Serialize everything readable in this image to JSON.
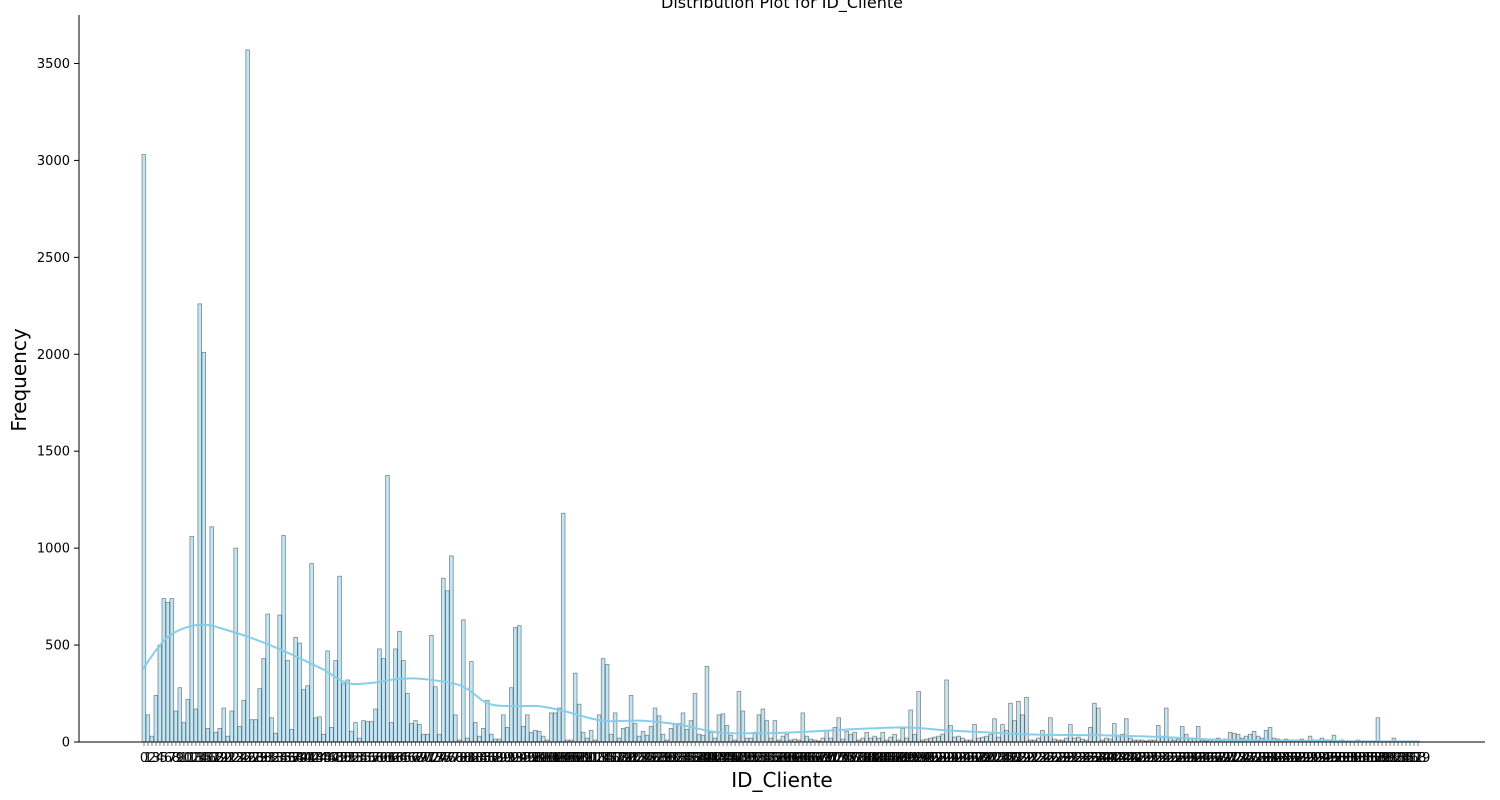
{
  "chart_data": {
    "type": "bar",
    "title": "Distribution Plot for ID_Cliente",
    "xlabel": "ID_Cliente",
    "ylabel": "Frequency",
    "ylim": [
      0,
      3750
    ],
    "yticks": [
      0,
      500,
      1000,
      1500,
      2000,
      2500,
      3000,
      3500
    ],
    "grid": false,
    "colors": {
      "bar": "#87CEEB",
      "kde": "#87CEEB",
      "edge": "#2f2f2f"
    },
    "n_bins": 320,
    "kde": {
      "x_fraction": [
        0.0,
        0.02,
        0.045,
        0.07,
        0.1,
        0.14,
        0.16,
        0.18,
        0.2,
        0.22,
        0.25,
        0.27,
        0.29,
        0.31,
        0.33,
        0.36,
        0.39,
        0.42,
        0.45,
        0.48,
        0.51,
        0.54,
        0.57,
        0.6,
        0.63,
        0.66,
        0.7,
        0.75,
        0.8,
        0.84,
        0.88,
        0.92,
        0.96,
        1.0
      ],
      "values": [
        370,
        540,
        605,
        570,
        500,
        380,
        305,
        305,
        325,
        325,
        290,
        200,
        185,
        185,
        160,
        110,
        110,
        90,
        50,
        45,
        50,
        60,
        70,
        75,
        60,
        50,
        38,
        35,
        25,
        12,
        8,
        5,
        3,
        2
      ]
    },
    "bars": [
      {
        "i": 0,
        "v": 3030
      },
      {
        "i": 1,
        "v": 140
      },
      {
        "i": 2,
        "v": 30
      },
      {
        "i": 3,
        "v": 240
      },
      {
        "i": 4,
        "v": 500
      },
      {
        "i": 5,
        "v": 740
      },
      {
        "i": 6,
        "v": 720
      },
      {
        "i": 7,
        "v": 740
      },
      {
        "i": 8,
        "v": 160
      },
      {
        "i": 9,
        "v": 280
      },
      {
        "i": 10,
        "v": 100
      },
      {
        "i": 11,
        "v": 220
      },
      {
        "i": 12,
        "v": 1060
      },
      {
        "i": 13,
        "v": 170
      },
      {
        "i": 14,
        "v": 2260
      },
      {
        "i": 15,
        "v": 2010
      },
      {
        "i": 16,
        "v": 70
      },
      {
        "i": 17,
        "v": 1110
      },
      {
        "i": 18,
        "v": 50
      },
      {
        "i": 19,
        "v": 70
      },
      {
        "i": 20,
        "v": 175
      },
      {
        "i": 21,
        "v": 30
      },
      {
        "i": 22,
        "v": 160
      },
      {
        "i": 23,
        "v": 1000
      },
      {
        "i": 24,
        "v": 80
      },
      {
        "i": 25,
        "v": 215
      },
      {
        "i": 26,
        "v": 3570
      },
      {
        "i": 27,
        "v": 115
      },
      {
        "i": 28,
        "v": 115
      },
      {
        "i": 29,
        "v": 275
      },
      {
        "i": 30,
        "v": 430
      },
      {
        "i": 31,
        "v": 660
      },
      {
        "i": 32,
        "v": 125
      },
      {
        "i": 33,
        "v": 45
      },
      {
        "i": 34,
        "v": 655
      },
      {
        "i": 35,
        "v": 1065
      },
      {
        "i": 36,
        "v": 420
      },
      {
        "i": 37,
        "v": 65
      },
      {
        "i": 38,
        "v": 540
      },
      {
        "i": 39,
        "v": 510
      },
      {
        "i": 40,
        "v": 270
      },
      {
        "i": 41,
        "v": 290
      },
      {
        "i": 42,
        "v": 920
      },
      {
        "i": 43,
        "v": 125
      },
      {
        "i": 44,
        "v": 130
      },
      {
        "i": 45,
        "v": 40
      },
      {
        "i": 46,
        "v": 470
      },
      {
        "i": 47,
        "v": 75
      },
      {
        "i": 48,
        "v": 420
      },
      {
        "i": 49,
        "v": 855
      },
      {
        "i": 50,
        "v": 300
      },
      {
        "i": 51,
        "v": 320
      },
      {
        "i": 52,
        "v": 55
      },
      {
        "i": 53,
        "v": 100
      },
      {
        "i": 54,
        "v": 20
      },
      {
        "i": 55,
        "v": 110
      },
      {
        "i": 56,
        "v": 105
      },
      {
        "i": 57,
        "v": 105
      },
      {
        "i": 58,
        "v": 170
      },
      {
        "i": 59,
        "v": 480
      },
      {
        "i": 60,
        "v": 430
      },
      {
        "i": 61,
        "v": 1375
      },
      {
        "i": 62,
        "v": 100
      },
      {
        "i": 63,
        "v": 480
      },
      {
        "i": 64,
        "v": 570
      },
      {
        "i": 65,
        "v": 420
      },
      {
        "i": 66,
        "v": 250
      },
      {
        "i": 67,
        "v": 95
      },
      {
        "i": 68,
        "v": 110
      },
      {
        "i": 69,
        "v": 90
      },
      {
        "i": 70,
        "v": 40
      },
      {
        "i": 71,
        "v": 40
      },
      {
        "i": 72,
        "v": 550
      },
      {
        "i": 73,
        "v": 285
      },
      {
        "i": 74,
        "v": 40
      },
      {
        "i": 75,
        "v": 845
      },
      {
        "i": 76,
        "v": 780
      },
      {
        "i": 77,
        "v": 960
      },
      {
        "i": 78,
        "v": 140
      },
      {
        "i": 79,
        "v": 10
      },
      {
        "i": 80,
        "v": 630
      },
      {
        "i": 81,
        "v": 20
      },
      {
        "i": 82,
        "v": 415
      },
      {
        "i": 83,
        "v": 100
      },
      {
        "i": 84,
        "v": 30
      },
      {
        "i": 85,
        "v": 70
      },
      {
        "i": 86,
        "v": 215
      },
      {
        "i": 87,
        "v": 40
      },
      {
        "i": 88,
        "v": 15
      },
      {
        "i": 89,
        "v": 15
      },
      {
        "i": 90,
        "v": 140
      },
      {
        "i": 91,
        "v": 75
      },
      {
        "i": 92,
        "v": 280
      },
      {
        "i": 93,
        "v": 590
      },
      {
        "i": 94,
        "v": 600
      },
      {
        "i": 95,
        "v": 80
      },
      {
        "i": 96,
        "v": 140
      },
      {
        "i": 97,
        "v": 50
      },
      {
        "i": 98,
        "v": 60
      },
      {
        "i": 99,
        "v": 55
      },
      {
        "i": 100,
        "v": 30
      },
      {
        "i": 101,
        "v": 10
      },
      {
        "i": 102,
        "v": 150
      },
      {
        "i": 103,
        "v": 150
      },
      {
        "i": 104,
        "v": 175
      },
      {
        "i": 105,
        "v": 1180
      },
      {
        "i": 106,
        "v": 10
      },
      {
        "i": 107,
        "v": 10
      },
      {
        "i": 108,
        "v": 355
      },
      {
        "i": 109,
        "v": 195
      },
      {
        "i": 110,
        "v": 50
      },
      {
        "i": 111,
        "v": 20
      },
      {
        "i": 112,
        "v": 60
      },
      {
        "i": 113,
        "v": 10
      },
      {
        "i": 114,
        "v": 140
      },
      {
        "i": 115,
        "v": 430
      },
      {
        "i": 116,
        "v": 400
      },
      {
        "i": 117,
        "v": 40
      },
      {
        "i": 118,
        "v": 150
      },
      {
        "i": 119,
        "v": 20
      },
      {
        "i": 120,
        "v": 70
      },
      {
        "i": 121,
        "v": 75
      },
      {
        "i": 122,
        "v": 240
      },
      {
        "i": 123,
        "v": 95
      },
      {
        "i": 124,
        "v": 30
      },
      {
        "i": 125,
        "v": 55
      },
      {
        "i": 126,
        "v": 35
      },
      {
        "i": 127,
        "v": 80
      },
      {
        "i": 128,
        "v": 175
      },
      {
        "i": 129,
        "v": 135
      },
      {
        "i": 130,
        "v": 40
      },
      {
        "i": 131,
        "v": 10
      },
      {
        "i": 132,
        "v": 70
      },
      {
        "i": 133,
        "v": 90
      },
      {
        "i": 134,
        "v": 95
      },
      {
        "i": 135,
        "v": 150
      },
      {
        "i": 136,
        "v": 65
      },
      {
        "i": 137,
        "v": 110
      },
      {
        "i": 138,
        "v": 250
      },
      {
        "i": 139,
        "v": 40
      },
      {
        "i": 140,
        "v": 35
      },
      {
        "i": 141,
        "v": 390
      },
      {
        "i": 142,
        "v": 50
      },
      {
        "i": 143,
        "v": 20
      },
      {
        "i": 144,
        "v": 140
      },
      {
        "i": 145,
        "v": 145
      },
      {
        "i": 146,
        "v": 85
      },
      {
        "i": 147,
        "v": 35
      },
      {
        "i": 148,
        "v": 10
      },
      {
        "i": 149,
        "v": 260
      },
      {
        "i": 150,
        "v": 160
      },
      {
        "i": 151,
        "v": 20
      },
      {
        "i": 152,
        "v": 20
      },
      {
        "i": 153,
        "v": 50
      },
      {
        "i": 154,
        "v": 140
      },
      {
        "i": 155,
        "v": 170
      },
      {
        "i": 156,
        "v": 110
      },
      {
        "i": 157,
        "v": 20
      },
      {
        "i": 158,
        "v": 110
      },
      {
        "i": 159,
        "v": 10
      },
      {
        "i": 160,
        "v": 30
      },
      {
        "i": 161,
        "v": 40
      },
      {
        "i": 162,
        "v": 10
      },
      {
        "i": 163,
        "v": 15
      },
      {
        "i": 164,
        "v": 10
      },
      {
        "i": 165,
        "v": 150
      },
      {
        "i": 166,
        "v": 30
      },
      {
        "i": 167,
        "v": 15
      },
      {
        "i": 168,
        "v": 10
      },
      {
        "i": 169,
        "v": 5
      },
      {
        "i": 170,
        "v": 20
      },
      {
        "i": 171,
        "v": 60
      },
      {
        "i": 172,
        "v": 20
      },
      {
        "i": 173,
        "v": 75
      },
      {
        "i": 174,
        "v": 125
      },
      {
        "i": 175,
        "v": 15
      },
      {
        "i": 176,
        "v": 55
      },
      {
        "i": 177,
        "v": 40
      },
      {
        "i": 178,
        "v": 50
      },
      {
        "i": 179,
        "v": 10
      },
      {
        "i": 180,
        "v": 20
      },
      {
        "i": 181,
        "v": 50
      },
      {
        "i": 182,
        "v": 20
      },
      {
        "i": 183,
        "v": 30
      },
      {
        "i": 184,
        "v": 20
      },
      {
        "i": 185,
        "v": 50
      },
      {
        "i": 186,
        "v": 10
      },
      {
        "i": 187,
        "v": 25
      },
      {
        "i": 188,
        "v": 40
      },
      {
        "i": 189,
        "v": 10
      },
      {
        "i": 190,
        "v": 70
      },
      {
        "i": 191,
        "v": 20
      },
      {
        "i": 192,
        "v": 165
      },
      {
        "i": 193,
        "v": 40
      },
      {
        "i": 194,
        "v": 260
      },
      {
        "i": 195,
        "v": 10
      },
      {
        "i": 196,
        "v": 15
      },
      {
        "i": 197,
        "v": 20
      },
      {
        "i": 198,
        "v": 25
      },
      {
        "i": 199,
        "v": 30
      },
      {
        "i": 200,
        "v": 40
      },
      {
        "i": 201,
        "v": 320
      },
      {
        "i": 202,
        "v": 85
      },
      {
        "i": 203,
        "v": 25
      },
      {
        "i": 204,
        "v": 30
      },
      {
        "i": 205,
        "v": 20
      },
      {
        "i": 206,
        "v": 10
      },
      {
        "i": 207,
        "v": 10
      },
      {
        "i": 208,
        "v": 90
      },
      {
        "i": 209,
        "v": 20
      },
      {
        "i": 210,
        "v": 25
      },
      {
        "i": 211,
        "v": 30
      },
      {
        "i": 212,
        "v": 40
      },
      {
        "i": 213,
        "v": 120
      },
      {
        "i": 214,
        "v": 25
      },
      {
        "i": 215,
        "v": 90
      },
      {
        "i": 216,
        "v": 60
      },
      {
        "i": 217,
        "v": 200
      },
      {
        "i": 218,
        "v": 110
      },
      {
        "i": 219,
        "v": 210
      },
      {
        "i": 220,
        "v": 140
      },
      {
        "i": 221,
        "v": 230
      },
      {
        "i": 222,
        "v": 10
      },
      {
        "i": 223,
        "v": 10
      },
      {
        "i": 224,
        "v": 20
      },
      {
        "i": 225,
        "v": 60
      },
      {
        "i": 226,
        "v": 40
      },
      {
        "i": 227,
        "v": 125
      },
      {
        "i": 228,
        "v": 15
      },
      {
        "i": 229,
        "v": 10
      },
      {
        "i": 230,
        "v": 10
      },
      {
        "i": 231,
        "v": 20
      },
      {
        "i": 232,
        "v": 90
      },
      {
        "i": 233,
        "v": 20
      },
      {
        "i": 234,
        "v": 25
      },
      {
        "i": 235,
        "v": 15
      },
      {
        "i": 236,
        "v": 10
      },
      {
        "i": 237,
        "v": 75
      },
      {
        "i": 238,
        "v": 200
      },
      {
        "i": 239,
        "v": 175
      },
      {
        "i": 240,
        "v": 10
      },
      {
        "i": 241,
        "v": 20
      },
      {
        "i": 242,
        "v": 15
      },
      {
        "i": 243,
        "v": 95
      },
      {
        "i": 244,
        "v": 30
      },
      {
        "i": 245,
        "v": 40
      },
      {
        "i": 246,
        "v": 120
      },
      {
        "i": 247,
        "v": 20
      },
      {
        "i": 248,
        "v": 10
      },
      {
        "i": 249,
        "v": 10
      },
      {
        "i": 250,
        "v": 10
      },
      {
        "i": 251,
        "v": 5
      },
      {
        "i": 252,
        "v": 10
      },
      {
        "i": 253,
        "v": 10
      },
      {
        "i": 254,
        "v": 85
      },
      {
        "i": 255,
        "v": 30
      },
      {
        "i": 256,
        "v": 175
      },
      {
        "i": 257,
        "v": 25
      },
      {
        "i": 258,
        "v": 10
      },
      {
        "i": 259,
        "v": 15
      },
      {
        "i": 260,
        "v": 80
      },
      {
        "i": 261,
        "v": 40
      },
      {
        "i": 262,
        "v": 20
      },
      {
        "i": 263,
        "v": 20
      },
      {
        "i": 264,
        "v": 80
      },
      {
        "i": 265,
        "v": 10
      },
      {
        "i": 266,
        "v": 5
      },
      {
        "i": 267,
        "v": 10
      },
      {
        "i": 268,
        "v": 15
      },
      {
        "i": 269,
        "v": 20
      },
      {
        "i": 270,
        "v": 10
      },
      {
        "i": 271,
        "v": 15
      },
      {
        "i": 272,
        "v": 50
      },
      {
        "i": 273,
        "v": 45
      },
      {
        "i": 274,
        "v": 40
      },
      {
        "i": 275,
        "v": 20
      },
      {
        "i": 276,
        "v": 30
      },
      {
        "i": 277,
        "v": 40
      },
      {
        "i": 278,
        "v": 55
      },
      {
        "i": 279,
        "v": 30
      },
      {
        "i": 280,
        "v": 20
      },
      {
        "i": 281,
        "v": 60
      },
      {
        "i": 282,
        "v": 75
      },
      {
        "i": 283,
        "v": 20
      },
      {
        "i": 284,
        "v": 15
      },
      {
        "i": 285,
        "v": 10
      },
      {
        "i": 286,
        "v": 15
      },
      {
        "i": 287,
        "v": 10
      },
      {
        "i": 288,
        "v": 10
      },
      {
        "i": 289,
        "v": 10
      },
      {
        "i": 290,
        "v": 15
      },
      {
        "i": 291,
        "v": 5
      },
      {
        "i": 292,
        "v": 30
      },
      {
        "i": 293,
        "v": 10
      },
      {
        "i": 294,
        "v": 10
      },
      {
        "i": 295,
        "v": 20
      },
      {
        "i": 296,
        "v": 10
      },
      {
        "i": 297,
        "v": 10
      },
      {
        "i": 298,
        "v": 35
      },
      {
        "i": 299,
        "v": 5
      },
      {
        "i": 300,
        "v": 10
      },
      {
        "i": 301,
        "v": 5
      },
      {
        "i": 302,
        "v": 5
      },
      {
        "i": 303,
        "v": 5
      },
      {
        "i": 304,
        "v": 10
      },
      {
        "i": 305,
        "v": 5
      },
      {
        "i": 306,
        "v": 5
      },
      {
        "i": 307,
        "v": 5
      },
      {
        "i": 308,
        "v": 5
      },
      {
        "i": 309,
        "v": 125
      },
      {
        "i": 310,
        "v": 5
      },
      {
        "i": 311,
        "v": 5
      },
      {
        "i": 312,
        "v": 5
      },
      {
        "i": 313,
        "v": 20
      },
      {
        "i": 314,
        "v": 5
      },
      {
        "i": 315,
        "v": 5
      },
      {
        "i": 316,
        "v": 5
      },
      {
        "i": 317,
        "v": 5
      },
      {
        "i": 318,
        "v": 5
      },
      {
        "i": 319,
        "v": 5
      }
    ]
  }
}
